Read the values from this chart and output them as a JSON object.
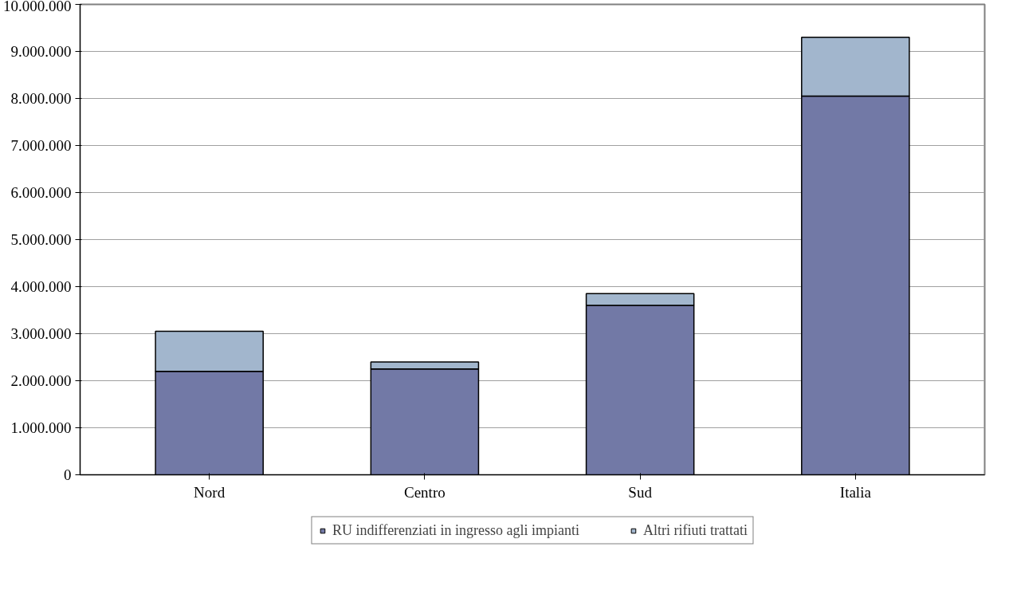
{
  "chart_data": {
    "type": "bar",
    "stacked": true,
    "categories": [
      "Nord",
      "Centro",
      "Sud",
      "Italia"
    ],
    "series": [
      {
        "name": "RU indifferenziati in ingresso agli impianti",
        "color": "#7279a6",
        "values": [
          2200000,
          2250000,
          3600000,
          8050000
        ]
      },
      {
        "name": "Altri rifiuti trattati",
        "color": "#a2b6cd",
        "values": [
          850000,
          150000,
          250000,
          1250000
        ]
      }
    ],
    "ylim": [
      0,
      10000000
    ],
    "yticks": [
      {
        "value": 0,
        "label": "0"
      },
      {
        "value": 1000000,
        "label": "1.000.000"
      },
      {
        "value": 2000000,
        "label": "2.000.000"
      },
      {
        "value": 3000000,
        "label": "3.000.000"
      },
      {
        "value": 4000000,
        "label": "4.000.000"
      },
      {
        "value": 5000000,
        "label": "5.000.000"
      },
      {
        "value": 6000000,
        "label": "6.000.000"
      },
      {
        "value": 7000000,
        "label": "7.000.000"
      },
      {
        "value": 8000000,
        "label": "8.000.000"
      },
      {
        "value": 9000000,
        "label": "9.000.000"
      },
      {
        "value": 10000000,
        "label": "10.000.000"
      }
    ],
    "grid": "y",
    "legend": "bottom"
  }
}
